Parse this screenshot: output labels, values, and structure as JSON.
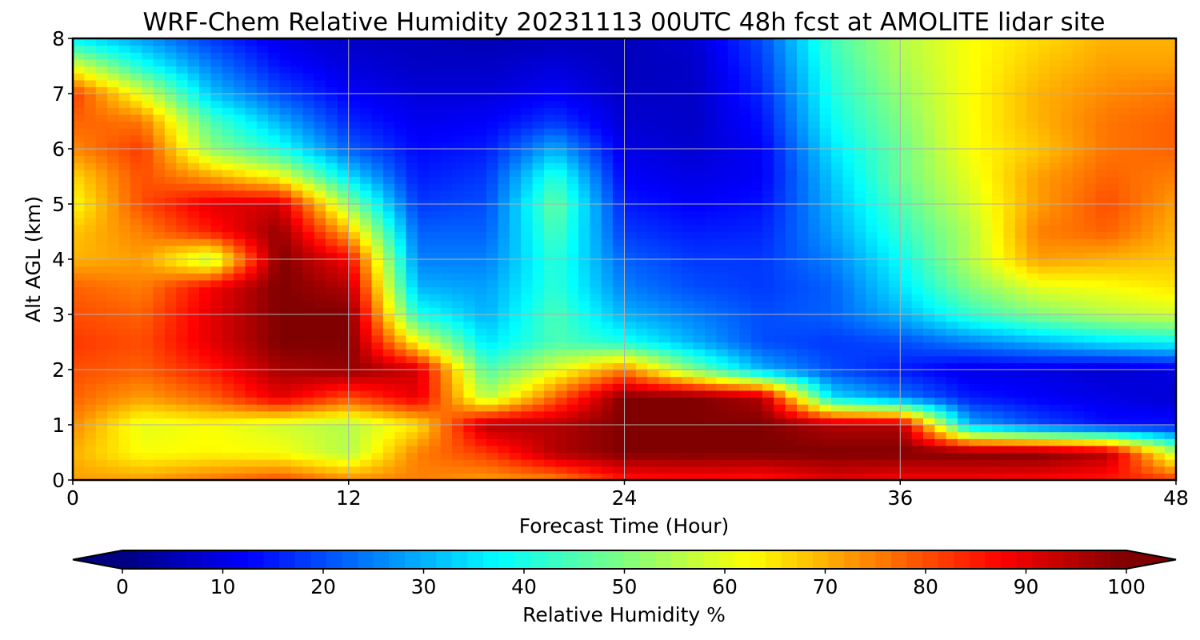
{
  "chart_data": {
    "type": "heatmap",
    "title": "WRF-Chem Relative Humidity 20231113 00UTC 48h fcst at AMOLITE lidar site",
    "xlabel": "Forecast Time (Hour)",
    "ylabel": "Alt AGL (km)",
    "xlim": [
      0,
      48
    ],
    "ylim": [
      0,
      8
    ],
    "x_ticks": [
      "0",
      "12",
      "24",
      "36",
      "48"
    ],
    "y_ticks": [
      "0",
      "1",
      "2",
      "3",
      "4",
      "5",
      "6",
      "7",
      "8"
    ],
    "grid": true,
    "colormap": "jet",
    "colorbar": {
      "label": "Relative Humidity %",
      "range": [
        0,
        100
      ],
      "ticks": [
        "0",
        "10",
        "20",
        "30",
        "40",
        "50",
        "60",
        "70",
        "80",
        "90",
        "100"
      ],
      "extend": "both",
      "placement": "bottom"
    },
    "x": [
      0,
      3,
      6,
      9,
      12,
      15,
      18,
      21,
      24,
      27,
      30,
      33,
      36,
      39,
      42,
      45,
      48
    ],
    "y": [
      0,
      0.5,
      1,
      1.5,
      2,
      2.5,
      3,
      3.5,
      4,
      4.5,
      5,
      5.5,
      6,
      6.5,
      7,
      7.5,
      8
    ],
    "values": [
      [
        72,
        72,
        76,
        80,
        74,
        75,
        72,
        74,
        85,
        86,
        85,
        90,
        88,
        88,
        87,
        85,
        82
      ],
      [
        70,
        62,
        63,
        62,
        55,
        75,
        82,
        95,
        100,
        100,
        100,
        100,
        100,
        100,
        100,
        95,
        55
      ],
      [
        74,
        60,
        62,
        58,
        55,
        65,
        95,
        95,
        100,
        100,
        100,
        95,
        95,
        30,
        20,
        14,
        14
      ],
      [
        78,
        72,
        78,
        90,
        80,
        90,
        55,
        78,
        100,
        100,
        95,
        35,
        25,
        15,
        12,
        10,
        8
      ],
      [
        80,
        78,
        85,
        96,
        98,
        92,
        45,
        60,
        75,
        50,
        30,
        20,
        15,
        10,
        10,
        8,
        10
      ],
      [
        82,
        80,
        90,
        100,
        100,
        62,
        35,
        45,
        40,
        30,
        20,
        18,
        20,
        25,
        30,
        35,
        38
      ],
      [
        80,
        78,
        90,
        100,
        100,
        40,
        30,
        45,
        30,
        25,
        20,
        22,
        30,
        42,
        50,
        55,
        58
      ],
      [
        78,
        75,
        88,
        100,
        95,
        30,
        28,
        42,
        25,
        20,
        18,
        22,
        35,
        50,
        60,
        62,
        65
      ],
      [
        70,
        72,
        55,
        100,
        88,
        25,
        25,
        42,
        22,
        18,
        18,
        25,
        38,
        55,
        72,
        70,
        68
      ],
      [
        68,
        75,
        85,
        98,
        70,
        22,
        22,
        45,
        18,
        15,
        16,
        28,
        42,
        55,
        75,
        78,
        70
      ],
      [
        62,
        80,
        90,
        92,
        52,
        18,
        20,
        48,
        15,
        12,
        14,
        30,
        45,
        58,
        72,
        80,
        72
      ],
      [
        66,
        80,
        72,
        62,
        35,
        15,
        18,
        42,
        12,
        10,
        12,
        32,
        48,
        60,
        72,
        78,
        75
      ],
      [
        74,
        82,
        52,
        40,
        22,
        13,
        15,
        30,
        10,
        8,
        12,
        35,
        48,
        62,
        68,
        76,
        78
      ],
      [
        78,
        76,
        45,
        30,
        16,
        11,
        12,
        18,
        8,
        7,
        14,
        38,
        50,
        62,
        70,
        76,
        78
      ],
      [
        82,
        60,
        32,
        20,
        12,
        9,
        9,
        12,
        7,
        7,
        16,
        40,
        52,
        62,
        70,
        74,
        76
      ],
      [
        60,
        40,
        25,
        14,
        9,
        7,
        7,
        9,
        6,
        7,
        18,
        42,
        54,
        62,
        68,
        72,
        72
      ],
      [
        36,
        28,
        18,
        10,
        7,
        6,
        5,
        6,
        6,
        8,
        20,
        44,
        55,
        62,
        66,
        70,
        70
      ]
    ]
  }
}
